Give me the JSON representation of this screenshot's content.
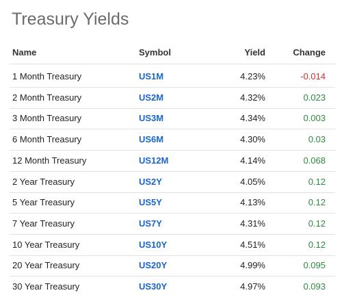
{
  "header": {
    "title": "Treasury Yields"
  },
  "table": {
    "columns": [
      "Name",
      "Symbol",
      "Yield",
      "Change"
    ],
    "rows": [
      [
        "1 Month Treasury",
        "US1M",
        "4.23%",
        "-0.014"
      ],
      [
        "2 Month Treasury",
        "US2M",
        "4.32%",
        "0.023"
      ],
      [
        "3 Month Treasury",
        "US3M",
        "4.34%",
        "0.003"
      ],
      [
        "6 Month Treasury",
        "US6M",
        "4.30%",
        "0.03"
      ],
      [
        "12 Month Treasury",
        "US12M",
        "4.14%",
        "0.068"
      ],
      [
        "2 Year Treasury",
        "US2Y",
        "4.05%",
        "0.12"
      ],
      [
        "5 Year Treasury",
        "US5Y",
        "4.13%",
        "0.12"
      ],
      [
        "7 Year Treasury",
        "US7Y",
        "4.31%",
        "0.12"
      ],
      [
        "10 Year Treasury",
        "US10Y",
        "4.51%",
        "0.12"
      ],
      [
        "20 Year Treasury",
        "US20Y",
        "4.99%",
        "0.095"
      ],
      [
        "30 Year Treasury",
        "US30Y",
        "4.97%",
        "0.093"
      ]
    ]
  }
}
